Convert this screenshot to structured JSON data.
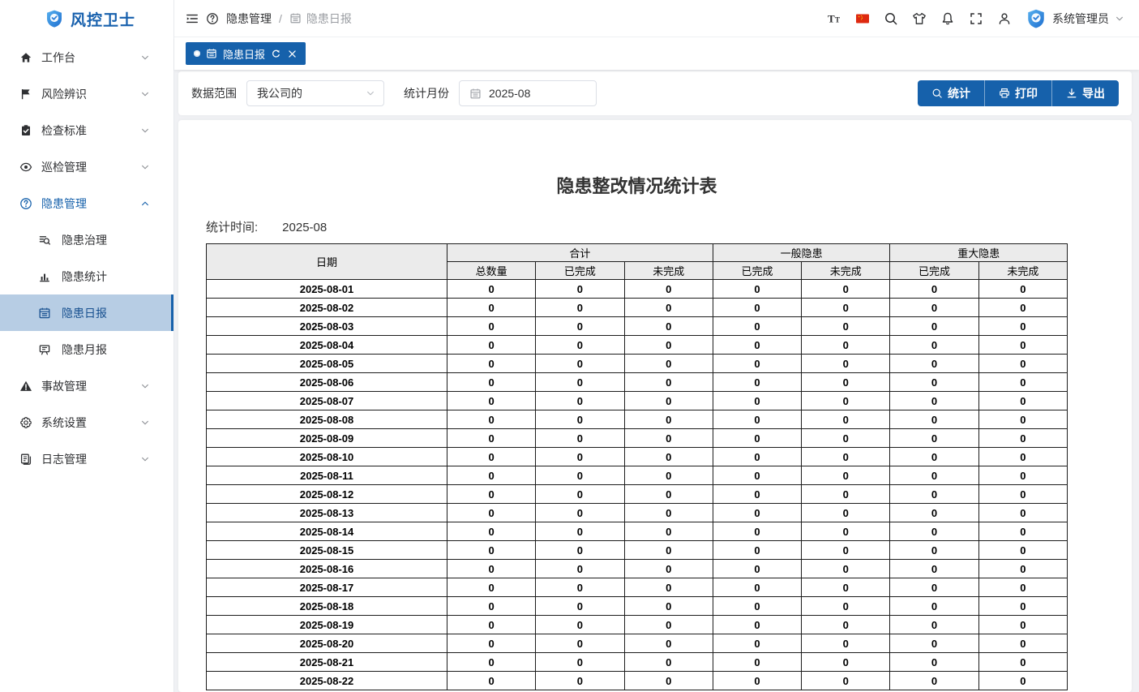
{
  "app": {
    "name": "风控卫士"
  },
  "sidebar": {
    "items": [
      {
        "name": "workbench",
        "label": "工作台",
        "icon": "home-icon",
        "expanded": false
      },
      {
        "name": "risk-identify",
        "label": "风险辨识",
        "icon": "flag-icon",
        "expanded": false
      },
      {
        "name": "check-standard",
        "label": "检查标准",
        "icon": "clipboard-check-icon",
        "expanded": false
      },
      {
        "name": "inspection-manage",
        "label": "巡检管理",
        "icon": "eye-icon",
        "expanded": false
      },
      {
        "name": "hazard-manage",
        "label": "隐患管理",
        "icon": "question-circle-icon",
        "expanded": true,
        "active": true,
        "children": [
          {
            "name": "hazard-treatment",
            "label": "隐患治理",
            "icon": "search-list-icon"
          },
          {
            "name": "hazard-statistics",
            "label": "隐患统计",
            "icon": "bar-chart-icon"
          },
          {
            "name": "hazard-daily-report",
            "label": "隐患日报",
            "icon": "calendar-icon",
            "selected": true
          },
          {
            "name": "hazard-monthly-report",
            "label": "隐患月报",
            "icon": "board-icon"
          }
        ]
      },
      {
        "name": "accident-manage",
        "label": "事故管理",
        "icon": "warning-icon",
        "expanded": false
      },
      {
        "name": "system-settings",
        "label": "系统设置",
        "icon": "gear-icon",
        "expanded": false
      },
      {
        "name": "log-manage",
        "label": "日志管理",
        "icon": "logs-icon",
        "expanded": false
      }
    ]
  },
  "topbar": {
    "breadcrumb": {
      "section": "隐患管理",
      "separator": "/",
      "page": "隐患日报"
    },
    "icons": [
      "font-size-icon",
      "language-flag-icon",
      "search-icon",
      "theme-icon",
      "bell-icon",
      "fullscreen-icon",
      "profile-icon"
    ],
    "user": {
      "name": "系统管理员"
    }
  },
  "tabbar": {
    "tabs": [
      {
        "label": "隐患日报",
        "active": true
      }
    ]
  },
  "filters": {
    "scope_label": "数据范围",
    "scope_value": "我公司的",
    "month_label": "统计月份",
    "month_value": "2025-08"
  },
  "actions": [
    {
      "name": "stat",
      "label": "统计",
      "icon": "search-icon"
    },
    {
      "name": "print",
      "label": "打印",
      "icon": "printer-icon"
    },
    {
      "name": "export",
      "label": "导出",
      "icon": "download-icon"
    }
  ],
  "colors": {
    "primary": "#1661ab",
    "active_item_bg": "#b7cde4",
    "table_header_bg": "#ebebeb",
    "flag_red": "#de2910"
  },
  "report": {
    "title": "隐患整改情况统计表",
    "time_label": "统计时间:",
    "time_value": "2025-08",
    "table": {
      "date_col": "日期",
      "groups": [
        {
          "label": "合计",
          "cols": [
            "总数量",
            "已完成",
            "未完成"
          ]
        },
        {
          "label": "一般隐患",
          "cols": [
            "已完成",
            "未完成"
          ]
        },
        {
          "label": "重大隐患",
          "cols": [
            "已完成",
            "未完成"
          ]
        }
      ],
      "rows": [
        {
          "date": "2025-08-01",
          "values": [
            "0",
            "0",
            "0",
            "0",
            "0",
            "0",
            "0"
          ]
        },
        {
          "date": "2025-08-02",
          "values": [
            "0",
            "0",
            "0",
            "0",
            "0",
            "0",
            "0"
          ]
        },
        {
          "date": "2025-08-03",
          "values": [
            "0",
            "0",
            "0",
            "0",
            "0",
            "0",
            "0"
          ]
        },
        {
          "date": "2025-08-04",
          "values": [
            "0",
            "0",
            "0",
            "0",
            "0",
            "0",
            "0"
          ]
        },
        {
          "date": "2025-08-05",
          "values": [
            "0",
            "0",
            "0",
            "0",
            "0",
            "0",
            "0"
          ]
        },
        {
          "date": "2025-08-06",
          "values": [
            "0",
            "0",
            "0",
            "0",
            "0",
            "0",
            "0"
          ]
        },
        {
          "date": "2025-08-07",
          "values": [
            "0",
            "0",
            "0",
            "0",
            "0",
            "0",
            "0"
          ]
        },
        {
          "date": "2025-08-08",
          "values": [
            "0",
            "0",
            "0",
            "0",
            "0",
            "0",
            "0"
          ]
        },
        {
          "date": "2025-08-09",
          "values": [
            "0",
            "0",
            "0",
            "0",
            "0",
            "0",
            "0"
          ]
        },
        {
          "date": "2025-08-10",
          "values": [
            "0",
            "0",
            "0",
            "0",
            "0",
            "0",
            "0"
          ]
        },
        {
          "date": "2025-08-11",
          "values": [
            "0",
            "0",
            "0",
            "0",
            "0",
            "0",
            "0"
          ]
        },
        {
          "date": "2025-08-12",
          "values": [
            "0",
            "0",
            "0",
            "0",
            "0",
            "0",
            "0"
          ]
        },
        {
          "date": "2025-08-13",
          "values": [
            "0",
            "0",
            "0",
            "0",
            "0",
            "0",
            "0"
          ]
        },
        {
          "date": "2025-08-14",
          "values": [
            "0",
            "0",
            "0",
            "0",
            "0",
            "0",
            "0"
          ]
        },
        {
          "date": "2025-08-15",
          "values": [
            "0",
            "0",
            "0",
            "0",
            "0",
            "0",
            "0"
          ]
        },
        {
          "date": "2025-08-16",
          "values": [
            "0",
            "0",
            "0",
            "0",
            "0",
            "0",
            "0"
          ]
        },
        {
          "date": "2025-08-17",
          "values": [
            "0",
            "0",
            "0",
            "0",
            "0",
            "0",
            "0"
          ]
        },
        {
          "date": "2025-08-18",
          "values": [
            "0",
            "0",
            "0",
            "0",
            "0",
            "0",
            "0"
          ]
        },
        {
          "date": "2025-08-19",
          "values": [
            "0",
            "0",
            "0",
            "0",
            "0",
            "0",
            "0"
          ]
        },
        {
          "date": "2025-08-20",
          "values": [
            "0",
            "0",
            "0",
            "0",
            "0",
            "0",
            "0"
          ]
        },
        {
          "date": "2025-08-21",
          "values": [
            "0",
            "0",
            "0",
            "0",
            "0",
            "0",
            "0"
          ]
        },
        {
          "date": "2025-08-22",
          "values": [
            "0",
            "0",
            "0",
            "0",
            "0",
            "0",
            "0"
          ]
        }
      ]
    }
  }
}
